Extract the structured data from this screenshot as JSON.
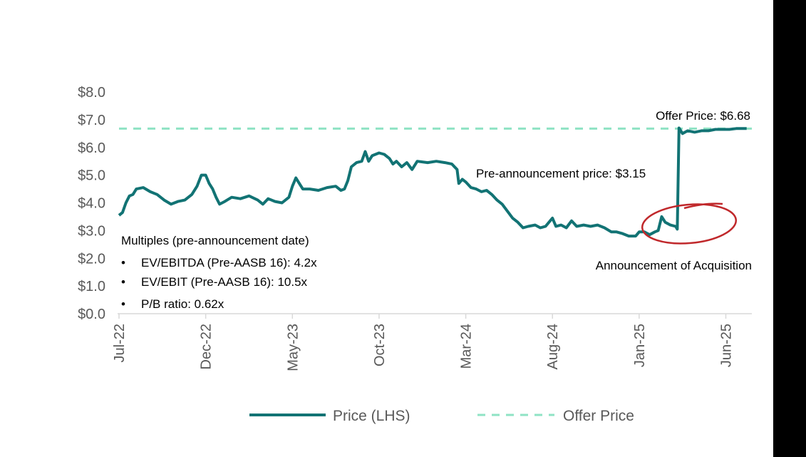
{
  "chart_data": {
    "type": "line",
    "title": "",
    "xlabel": "",
    "ylabel": "",
    "ylim": [
      0,
      8
    ],
    "yticks": [
      "$0.0",
      "$1.0",
      "$2.0",
      "$3.0",
      "$4.0",
      "$5.0",
      "$6.0",
      "$7.0",
      "$8.0"
    ],
    "x_range_months": [
      0,
      36.5
    ],
    "xticks": [
      {
        "label": "Jul-22",
        "month": 0
      },
      {
        "label": "Dec-22",
        "month": 5
      },
      {
        "label": "May-23",
        "month": 10
      },
      {
        "label": "Oct-23",
        "month": 15
      },
      {
        "label": "Mar-24",
        "month": 20
      },
      {
        "label": "Aug-24",
        "month": 25
      },
      {
        "label": "Jan-25",
        "month": 30
      },
      {
        "label": "Jun-25",
        "month": 35
      }
    ],
    "series": [
      {
        "name": "Price (LHS)",
        "color": "#127374",
        "style": "solid",
        "points": [
          [
            0.0,
            3.55
          ],
          [
            0.2,
            3.65
          ],
          [
            0.4,
            4.0
          ],
          [
            0.6,
            4.25
          ],
          [
            0.8,
            4.3
          ],
          [
            1.0,
            4.5
          ],
          [
            1.4,
            4.55
          ],
          [
            1.8,
            4.4
          ],
          [
            2.2,
            4.3
          ],
          [
            2.6,
            4.1
          ],
          [
            3.0,
            3.95
          ],
          [
            3.4,
            4.05
          ],
          [
            3.8,
            4.1
          ],
          [
            4.2,
            4.3
          ],
          [
            4.5,
            4.6
          ],
          [
            4.75,
            5.0
          ],
          [
            5.0,
            5.0
          ],
          [
            5.2,
            4.7
          ],
          [
            5.4,
            4.5
          ],
          [
            5.6,
            4.2
          ],
          [
            5.8,
            3.95
          ],
          [
            6.1,
            4.05
          ],
          [
            6.5,
            4.2
          ],
          [
            7.0,
            4.15
          ],
          [
            7.5,
            4.25
          ],
          [
            8.0,
            4.1
          ],
          [
            8.3,
            3.95
          ],
          [
            8.6,
            4.15
          ],
          [
            9.0,
            4.05
          ],
          [
            9.4,
            4.0
          ],
          [
            9.8,
            4.2
          ],
          [
            10.0,
            4.6
          ],
          [
            10.2,
            4.9
          ],
          [
            10.4,
            4.7
          ],
          [
            10.6,
            4.5
          ],
          [
            11.0,
            4.5
          ],
          [
            11.5,
            4.45
          ],
          [
            12.0,
            4.55
          ],
          [
            12.5,
            4.6
          ],
          [
            12.8,
            4.45
          ],
          [
            13.0,
            4.5
          ],
          [
            13.2,
            4.8
          ],
          [
            13.4,
            5.3
          ],
          [
            13.7,
            5.45
          ],
          [
            14.0,
            5.5
          ],
          [
            14.2,
            5.85
          ],
          [
            14.4,
            5.5
          ],
          [
            14.6,
            5.7
          ],
          [
            15.0,
            5.8
          ],
          [
            15.3,
            5.75
          ],
          [
            15.6,
            5.6
          ],
          [
            15.8,
            5.4
          ],
          [
            16.0,
            5.5
          ],
          [
            16.3,
            5.3
          ],
          [
            16.6,
            5.45
          ],
          [
            16.9,
            5.2
          ],
          [
            17.2,
            5.5
          ],
          [
            17.8,
            5.45
          ],
          [
            18.3,
            5.5
          ],
          [
            18.8,
            5.45
          ],
          [
            19.2,
            5.4
          ],
          [
            19.5,
            5.2
          ],
          [
            19.6,
            4.7
          ],
          [
            19.8,
            4.85
          ],
          [
            20.0,
            4.75
          ],
          [
            20.3,
            4.55
          ],
          [
            20.6,
            4.5
          ],
          [
            20.9,
            4.4
          ],
          [
            21.2,
            4.45
          ],
          [
            21.5,
            4.3
          ],
          [
            21.8,
            4.1
          ],
          [
            22.1,
            3.95
          ],
          [
            22.4,
            3.7
          ],
          [
            22.7,
            3.45
          ],
          [
            23.0,
            3.3
          ],
          [
            23.3,
            3.1
          ],
          [
            23.6,
            3.15
          ],
          [
            24.0,
            3.2
          ],
          [
            24.3,
            3.1
          ],
          [
            24.6,
            3.15
          ],
          [
            25.0,
            3.45
          ],
          [
            25.2,
            3.15
          ],
          [
            25.5,
            3.2
          ],
          [
            25.8,
            3.1
          ],
          [
            26.1,
            3.35
          ],
          [
            26.4,
            3.15
          ],
          [
            26.8,
            3.2
          ],
          [
            27.2,
            3.15
          ],
          [
            27.6,
            3.2
          ],
          [
            28.0,
            3.1
          ],
          [
            28.4,
            2.95
          ],
          [
            28.7,
            2.95
          ],
          [
            29.0,
            2.9
          ],
          [
            29.4,
            2.8
          ],
          [
            29.8,
            2.8
          ],
          [
            30.0,
            2.95
          ],
          [
            30.3,
            2.95
          ],
          [
            30.6,
            2.85
          ],
          [
            30.9,
            2.95
          ],
          [
            31.1,
            3.0
          ],
          [
            31.3,
            3.5
          ],
          [
            31.5,
            3.3
          ],
          [
            31.8,
            3.2
          ],
          [
            32.1,
            3.15
          ],
          [
            32.2,
            3.05
          ],
          [
            32.3,
            6.7
          ],
          [
            32.5,
            6.5
          ],
          [
            32.8,
            6.6
          ],
          [
            33.2,
            6.55
          ],
          [
            33.6,
            6.6
          ],
          [
            34.0,
            6.6
          ],
          [
            34.4,
            6.65
          ],
          [
            34.8,
            6.65
          ],
          [
            35.2,
            6.65
          ],
          [
            35.6,
            6.68
          ],
          [
            36.2,
            6.68
          ]
        ]
      },
      {
        "name": "Offer Price",
        "color": "#8fe3c4",
        "style": "dashed",
        "value": 6.68
      }
    ],
    "annotations": {
      "offer_price": "Offer Price: $6.68",
      "pre_announcement": "Pre-announcement price: $3.15",
      "announcement": "Announcement of Acquisition",
      "multiples_title": "Multiples (pre-announcement date)",
      "multiples": [
        "EV/EBITDA (Pre-AASB 16): 4.2x",
        "EV/EBIT (Pre-AASB 16): 10.5x",
        "P/B ratio: 0.62x"
      ],
      "bullet": "•"
    },
    "legend": {
      "placement": "bottom-center",
      "items": [
        {
          "label": "Price (LHS)",
          "color": "#127374",
          "style": "solid"
        },
        {
          "label": "Offer Price",
          "color": "#8fe3c4",
          "style": "dashed"
        }
      ]
    },
    "highlight_color": "#c0282b"
  }
}
